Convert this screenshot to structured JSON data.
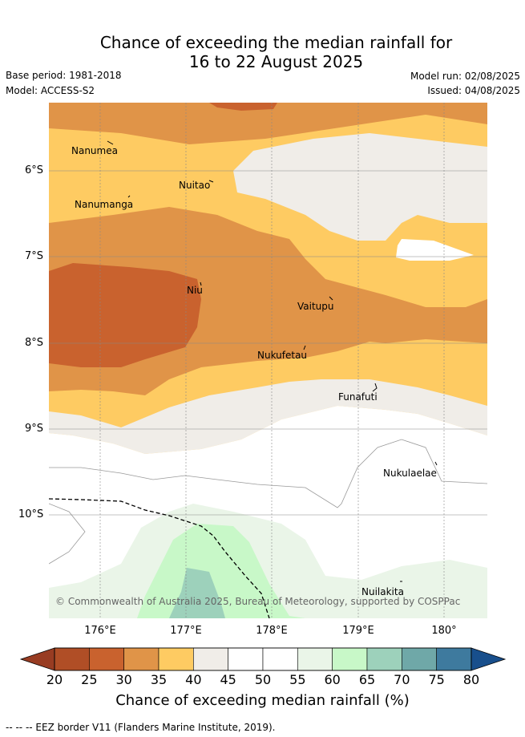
{
  "title_line1": "Chance of exceeding the median rainfall for",
  "title_line2": "16 to 22 August 2025",
  "base_period": "Base period: 1981-2018",
  "model": "Model: ACCESS-S2",
  "model_run": "Model run: 02/08/2025",
  "issued": "Issued: 04/08/2025",
  "lat_ticks": [
    "6°S",
    "7°S",
    "8°S",
    "9°S",
    "10°S"
  ],
  "lon_ticks": [
    "176°E",
    "177°E",
    "178°E",
    "179°E",
    "180°"
  ],
  "places": [
    "Nanumea",
    "Nuitao",
    "Nanumanga",
    "Niu",
    "Vaitupu",
    "Nukufetau",
    "Funafuti",
    "Nukulaelae",
    "Nuilakita"
  ],
  "copyright": "© Commonwealth of Australia 2025, Bureau of Meteorology, supported by COSPPac",
  "colorbar": {
    "ticks": [
      "20",
      "25",
      "30",
      "35",
      "40",
      "45",
      "50",
      "55",
      "60",
      "65",
      "70",
      "75",
      "80"
    ],
    "title": "Chance of exceeding median rainfall (%)",
    "colors": [
      "#b04e26",
      "#c9622e",
      "#e09448",
      "#fecb62",
      "#f0ede8",
      "#ffffff",
      "#ffffff",
      "#eaf5e8",
      "#c8f8c8",
      "#9dd1bb",
      "#6fa8a8",
      "#3e7a9e"
    ],
    "under_color": "#983c22",
    "over_color": "#184f8c"
  },
  "footnote": "-- -- -- EEZ border V11 (Flanders Marine Institute, 2019)."
}
